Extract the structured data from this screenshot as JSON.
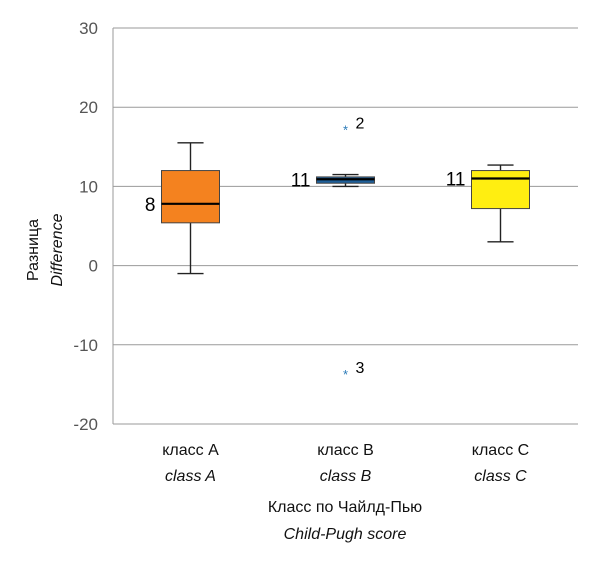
{
  "chart_data": {
    "type": "boxplot",
    "ylim": [
      -20,
      30
    ],
    "y_ticks": [
      -20,
      -10,
      0,
      10,
      20,
      30
    ],
    "grid": true,
    "xlabel": "Класс по Чайлд-Пью",
    "xlabel_en": "Child-Pugh score",
    "ylabel": "Разница",
    "ylabel_en": "Difference",
    "categories": [
      {
        "label": "класс A",
        "label_en": "class A",
        "color": "#f4821f",
        "whisker_low": -1,
        "q1": 5.4,
        "median": 7.8,
        "q3": 12,
        "whisker_high": 15.5,
        "median_label": "8",
        "outliers": []
      },
      {
        "label": "класс B",
        "label_en": "class B",
        "color": "#1f5f99",
        "whisker_low": 10,
        "q1": 10.4,
        "median": 10.9,
        "q3": 11.2,
        "whisker_high": 11.5,
        "median_label": "11",
        "outliers": [
          {
            "value": 17.2,
            "label": "2"
          },
          {
            "value": -13.7,
            "label": "3"
          }
        ]
      },
      {
        "label": "класс C",
        "label_en": "class C",
        "color": "#ffee11",
        "whisker_low": 3,
        "q1": 7.2,
        "median": 11,
        "q3": 12,
        "whisker_high": 12.7,
        "median_label": "11",
        "outliers": []
      }
    ]
  }
}
